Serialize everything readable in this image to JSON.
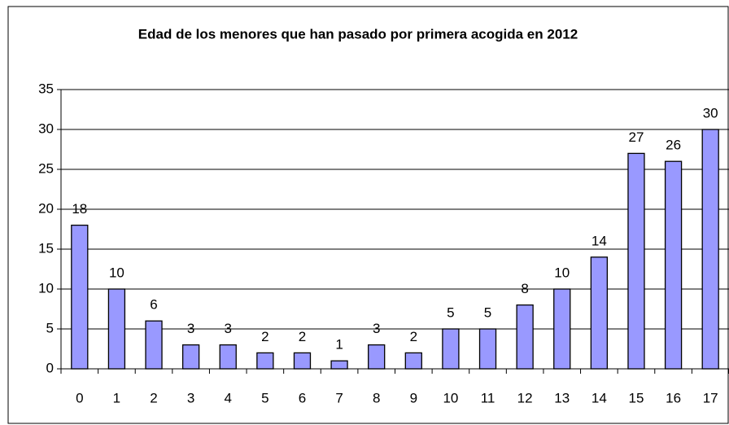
{
  "chart_data": {
    "type": "bar",
    "title": "Edad de los menores que han pasado por primera acogida en 2012",
    "categories": [
      "0",
      "1",
      "2",
      "3",
      "4",
      "5",
      "6",
      "7",
      "8",
      "9",
      "10",
      "11",
      "12",
      "13",
      "14",
      "15",
      "16",
      "17"
    ],
    "values": [
      18,
      10,
      6,
      3,
      3,
      2,
      2,
      1,
      3,
      2,
      5,
      5,
      8,
      10,
      14,
      27,
      26,
      30
    ],
    "color": "#9999ff",
    "ylim": [
      0,
      35
    ],
    "yticks": [
      0,
      5,
      10,
      15,
      20,
      25,
      30,
      35
    ],
    "grid": true
  }
}
